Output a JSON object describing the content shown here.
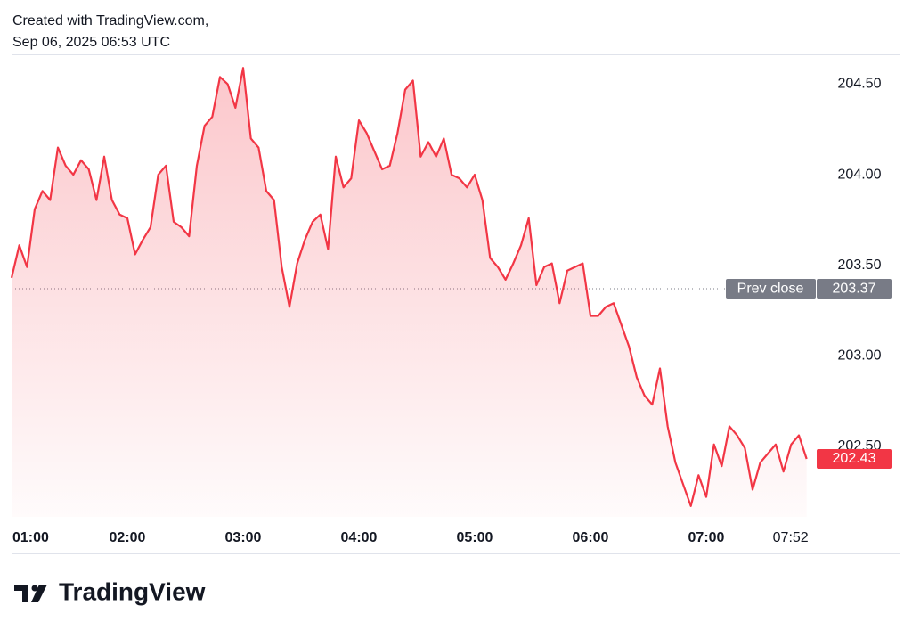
{
  "header": {
    "line1": "Created with TradingView.com,",
    "line2": "Sep 06, 2025 06:53 UTC"
  },
  "footer": {
    "brand": "TradingView"
  },
  "chart_data": {
    "type": "line",
    "color": "#f23645",
    "x": [
      "01:00",
      "01:04",
      "01:08",
      "01:12",
      "01:16",
      "01:20",
      "01:24",
      "01:28",
      "01:32",
      "01:36",
      "01:40",
      "01:44",
      "01:48",
      "01:52",
      "01:56",
      "02:00",
      "02:04",
      "02:08",
      "02:12",
      "02:16",
      "02:20",
      "02:24",
      "02:28",
      "02:32",
      "02:36",
      "02:40",
      "02:44",
      "02:48",
      "02:52",
      "02:56",
      "03:00",
      "03:04",
      "03:08",
      "03:12",
      "03:16",
      "03:20",
      "03:24",
      "03:28",
      "03:32",
      "03:36",
      "03:40",
      "03:44",
      "03:48",
      "03:52",
      "03:56",
      "04:00",
      "04:04",
      "04:08",
      "04:12",
      "04:16",
      "04:20",
      "04:24",
      "04:28",
      "04:32",
      "04:36",
      "04:40",
      "04:44",
      "04:48",
      "04:52",
      "04:56",
      "05:00",
      "05:04",
      "05:08",
      "05:12",
      "05:16",
      "05:20",
      "05:24",
      "05:28",
      "05:32",
      "05:36",
      "05:40",
      "05:44",
      "05:48",
      "05:52",
      "05:56",
      "06:00",
      "06:04",
      "06:08",
      "06:12",
      "06:16",
      "06:20",
      "06:24",
      "06:28",
      "06:32",
      "06:36",
      "06:40",
      "06:44",
      "06:48",
      "06:52",
      "06:56",
      "07:00",
      "07:04",
      "07:08",
      "07:12",
      "07:16",
      "07:20",
      "07:24",
      "07:28",
      "07:32",
      "07:36",
      "07:40",
      "07:44",
      "07:48",
      "07:52"
    ],
    "values": [
      203.43,
      203.61,
      203.49,
      203.81,
      203.91,
      203.86,
      204.15,
      204.05,
      204.0,
      204.08,
      204.03,
      203.86,
      204.1,
      203.86,
      203.78,
      203.76,
      203.56,
      203.64,
      203.71,
      204.0,
      204.05,
      203.74,
      203.71,
      203.66,
      204.05,
      204.27,
      204.32,
      204.54,
      204.5,
      204.37,
      204.59,
      204.2,
      204.15,
      203.91,
      203.86,
      203.49,
      203.27,
      203.51,
      203.64,
      203.74,
      203.78,
      203.59,
      204.1,
      203.93,
      203.98,
      204.3,
      204.23,
      204.13,
      204.03,
      204.05,
      204.23,
      204.47,
      204.52,
      204.1,
      204.18,
      204.1,
      204.2,
      204.0,
      203.98,
      203.93,
      204.0,
      203.86,
      203.54,
      203.49,
      203.42,
      203.51,
      203.61,
      203.76,
      203.39,
      203.49,
      203.51,
      203.29,
      203.47,
      203.49,
      203.51,
      203.22,
      203.22,
      203.27,
      203.29,
      203.17,
      203.05,
      202.88,
      202.78,
      202.73,
      202.93,
      202.61,
      202.41,
      202.29,
      202.17,
      202.34,
      202.22,
      202.51,
      202.39,
      202.61,
      202.56,
      202.49,
      202.26,
      202.41,
      202.46,
      202.51,
      202.36,
      202.51,
      202.56,
      202.43
    ],
    "xlim": [
      "01:00",
      "07:54"
    ],
    "xticks": [
      "01:00",
      "02:00",
      "03:00",
      "04:00",
      "05:00",
      "06:00",
      "07:00"
    ],
    "current_time": "07:52",
    "ylim": [
      202.11,
      204.66
    ],
    "yticks": [
      {
        "value": 203.0,
        "label": "203.00"
      },
      {
        "value": 203.5,
        "label": "203.50"
      },
      {
        "value": 204.0,
        "label": "204.00"
      },
      {
        "value": 204.5,
        "label": "204.50"
      },
      {
        "value": 202.5,
        "label": "202.50"
      }
    ],
    "prev_close": {
      "label": "Prev close",
      "value": 203.37
    },
    "last_price": 202.43
  }
}
